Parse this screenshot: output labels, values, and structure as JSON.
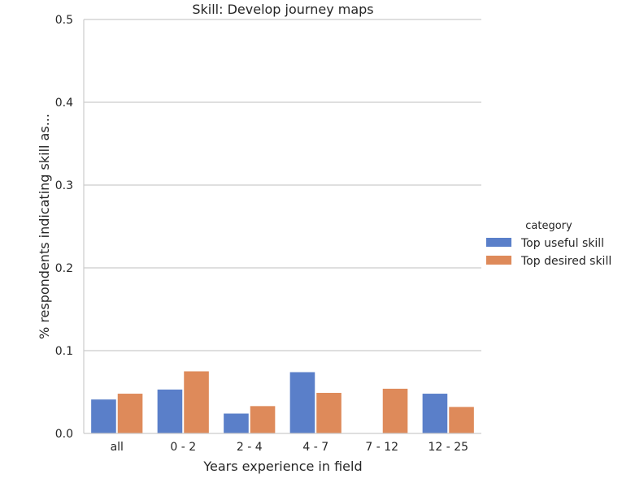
{
  "chart_data": {
    "type": "bar",
    "title": "Skill: Develop journey maps",
    "xlabel": "Years experience in field",
    "ylabel": "% respondents indicating skill as...",
    "categories": [
      "all",
      "0 - 2",
      "2 - 4",
      "4 - 7",
      "7 - 12",
      "12 - 25"
    ],
    "ylim": [
      0,
      0.5
    ],
    "yticks": [
      "0.0",
      "0.1",
      "0.2",
      "0.3",
      "0.4",
      "0.5"
    ],
    "grid": "horizontal",
    "legend": {
      "title": "category",
      "placement": "right"
    },
    "series": [
      {
        "name": "Top useful skill",
        "color": "#5a7fc9",
        "values": [
          0.041,
          0.053,
          0.024,
          0.074,
          0.0,
          0.048
        ]
      },
      {
        "name": "Top desired skill",
        "color": "#de8a5a",
        "values": [
          0.048,
          0.075,
          0.033,
          0.049,
          0.054,
          0.032
        ]
      }
    ]
  }
}
